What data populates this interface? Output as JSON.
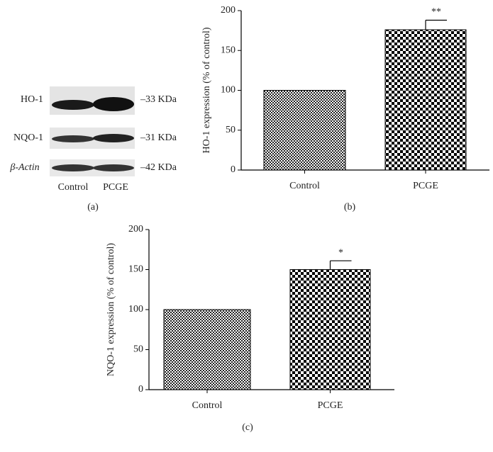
{
  "blot": {
    "proteins": [
      "HO-1",
      "NQO-1",
      "β-Actin"
    ],
    "sizes": [
      "–33 KDa",
      "–31 KDa",
      "–42 KDa"
    ],
    "lanes": [
      "Control",
      "PCGE"
    ],
    "caption": "(a)"
  },
  "chart_data": [
    {
      "type": "bar",
      "ylabel": "HO-1 expression (% of control)",
      "categories": [
        "Control",
        "PCGE"
      ],
      "values": [
        100,
        176
      ],
      "errors": [
        null,
        12
      ],
      "annotations": [
        {
          "x": "PCGE",
          "text": "**"
        }
      ],
      "ylim": [
        0,
        200
      ],
      "yticks": [
        0,
        50,
        100,
        150,
        200
      ],
      "color": "#000000",
      "caption": "(b)"
    },
    {
      "type": "bar",
      "ylabel": "NQO-1 expression (% of control)",
      "categories": [
        "Control",
        "PCGE"
      ],
      "values": [
        100,
        150
      ],
      "errors": [
        null,
        11
      ],
      "annotations": [
        {
          "x": "PCGE",
          "text": "*"
        }
      ],
      "ylim": [
        0,
        200
      ],
      "yticks": [
        0,
        50,
        100,
        150,
        200
      ],
      "color": "#000000",
      "caption": "(c)"
    }
  ]
}
